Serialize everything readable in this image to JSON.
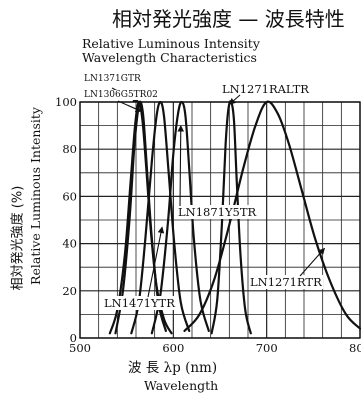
{
  "chart_data": {
    "type": "line",
    "title_ja": "相対発光強度 — 波長特性",
    "title_en_line1": "Relative Luminous Intensity",
    "title_en_line2": "Wavelength Characteristics",
    "ylabel_ja": "相対発光強度 (%)",
    "ylabel_en": "Relative Luminous Intensity",
    "xlabel_ja": "波 長 λp (nm)",
    "xlabel_en": "Wavelength",
    "xlim": [
      500,
      800
    ],
    "ylim": [
      0,
      100
    ],
    "x_ticks": [
      {
        "value": 500,
        "label": "500"
      },
      {
        "value": 600,
        "label": "600"
      },
      {
        "value": 700,
        "label": "700"
      },
      {
        "value": 800,
        "label": "800"
      }
    ],
    "y_ticks": [
      {
        "value": 0,
        "label": "0"
      },
      {
        "value": 20,
        "label": "20"
      },
      {
        "value": 40,
        "label": "40"
      },
      {
        "value": 60,
        "label": "60"
      },
      {
        "value": 80,
        "label": "80"
      },
      {
        "value": 100,
        "label": "100"
      }
    ],
    "grid": true,
    "series": [
      {
        "name": "LN1371GTR",
        "x": [
          532,
          540,
          548,
          554,
          559,
          563,
          567,
          571,
          576,
          582,
          590,
          598
        ],
        "y": [
          2,
          12,
          35,
          65,
          90,
          100,
          92,
          72,
          45,
          22,
          8,
          2
        ]
      },
      {
        "name": "LN1306G5TR02",
        "x": [
          538,
          546,
          553,
          558,
          562,
          565,
          568,
          572,
          577,
          584,
          592
        ],
        "y": [
          2,
          20,
          50,
          80,
          96,
          100,
          93,
          70,
          42,
          15,
          3
        ]
      },
      {
        "name": "LN1471YTR",
        "x": [
          555,
          563,
          570,
          577,
          582,
          586,
          590,
          595,
          601,
          608,
          617
        ],
        "y": [
          2,
          15,
          42,
          75,
          94,
          100,
          94,
          70,
          40,
          15,
          3
        ]
      },
      {
        "name": "LN1871Y5TR",
        "x": [
          577,
          586,
          594,
          600,
          605,
          609,
          613,
          617,
          622,
          629,
          638
        ],
        "y": [
          2,
          18,
          48,
          78,
          95,
          100,
          94,
          72,
          42,
          16,
          3
        ]
      },
      {
        "name": "LN1271RALTR",
        "x": [
          641,
          647,
          652,
          656,
          659,
          662,
          665,
          668,
          672,
          677,
          683
        ],
        "y": [
          2,
          16,
          48,
          82,
          97,
          100,
          92,
          66,
          35,
          12,
          2
        ]
      },
      {
        "name": "LN1271RTR",
        "x": [
          612,
          628,
          644,
          660,
          675,
          688,
          700,
          712,
          724,
          738,
          752,
          768,
          785,
          800
        ],
        "y": [
          3,
          10,
          25,
          48,
          72,
          90,
          100,
          95,
          82,
          62,
          42,
          24,
          10,
          4
        ]
      }
    ],
    "annotations": [
      {
        "text": "LN1371GTR",
        "target_x": 563,
        "target_y": 100
      },
      {
        "text": "LN1306G5TR02",
        "target_x": 566,
        "target_y": 96
      },
      {
        "text": "LN1271RALTR",
        "target_x": 660,
        "target_y": 99
      },
      {
        "text": "LN1871Y5TR",
        "target_x": 608,
        "target_y": 90
      },
      {
        "text": "LN1271RTR",
        "target_x": 762,
        "target_y": 38
      },
      {
        "text": "LN1471YTR",
        "target_x": 588,
        "target_y": 47
      }
    ]
  }
}
